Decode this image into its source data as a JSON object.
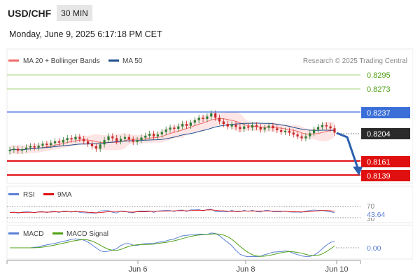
{
  "header": {
    "symbol": "USD/CHF",
    "timeframe": "30 MIN",
    "datetime": "Monday, June 9, 2025 6:17:18 PM CET"
  },
  "legend": {
    "ma20_bb": "MA 20 + Bollinger Bands",
    "ma50": "MA 50",
    "credit": "Research © 2025 Trading Central"
  },
  "colors": {
    "up": "#2e7d32",
    "down": "#c62828",
    "ma20": "#f26b6b",
    "ma50": "#1f4e8c",
    "band": "#fde0e0",
    "resistance": "#7cc242",
    "pivot": "#3b6fd8",
    "support": "#e01010",
    "arrow": "#2b5fb0",
    "rsi": "#5a7fd6",
    "rsi_ma": "#e01010",
    "macd": "#5a7fd6",
    "macd_signal": "#4fa015"
  },
  "levels": [
    {
      "value": "0.8295",
      "kind": "resistance"
    },
    {
      "value": "0.8273",
      "kind": "resistance"
    },
    {
      "value": "0.8237",
      "kind": "pivot"
    },
    {
      "value": "0.8204",
      "kind": "last"
    },
    {
      "value": "0.8161",
      "kind": "support"
    },
    {
      "value": "0.8139",
      "kind": "support"
    }
  ],
  "rsi_panel": {
    "legend_rsi": "RSI",
    "legend_ma": "9MA",
    "level_70": "70",
    "level_30": "30",
    "value": "43.64"
  },
  "macd_panel": {
    "legend_macd": "MACD",
    "legend_signal": "MACD Signal",
    "value": "0.00"
  },
  "xaxis": {
    "labels": [
      "Jun 6",
      "Jun 8",
      "Jun 10"
    ]
  },
  "chart_data": {
    "type": "candlestick",
    "symbol": "USD/CHF",
    "interval": "30 MIN",
    "ylim": [
      0.813,
      0.8305
    ],
    "close": [
      0.8176,
      0.8178,
      0.8175,
      0.8177,
      0.818,
      0.8182,
      0.818,
      0.8183,
      0.8186,
      0.8184,
      0.8187,
      0.819,
      0.8188,
      0.8192,
      0.8195,
      0.8193,
      0.8197,
      0.8194,
      0.819,
      0.8186,
      0.8182,
      0.8178,
      0.8185,
      0.8192,
      0.8198,
      0.8195,
      0.819,
      0.8194,
      0.8197,
      0.8193,
      0.8189,
      0.8192,
      0.8196,
      0.8199,
      0.8202,
      0.8198,
      0.8201,
      0.8205,
      0.8209,
      0.8212,
      0.821,
      0.8214,
      0.8218,
      0.8215,
      0.822,
      0.8224,
      0.8228,
      0.8226,
      0.823,
      0.8235,
      0.8228,
      0.8222,
      0.8218,
      0.8214,
      0.8217,
      0.8213,
      0.821,
      0.8214,
      0.8212,
      0.8216,
      0.8213,
      0.8209,
      0.8212,
      0.8215,
      0.8211,
      0.8208,
      0.8205,
      0.8207,
      0.8204,
      0.8201,
      0.8198,
      0.8195,
      0.8198,
      0.8203,
      0.8209,
      0.8213,
      0.8216,
      0.8214,
      0.8211,
      0.8204
    ],
    "last": 0.8204,
    "pivot": 0.8237,
    "resistances": [
      0.8273,
      0.8295
    ],
    "supports": [
      0.8161,
      0.8139
    ],
    "rsi": {
      "value": 43.64,
      "levels": [
        70,
        30
      ]
    },
    "macd": {
      "value": 0.0
    },
    "x_ticks": [
      "Jun 6",
      "Jun 8",
      "Jun 10"
    ]
  }
}
